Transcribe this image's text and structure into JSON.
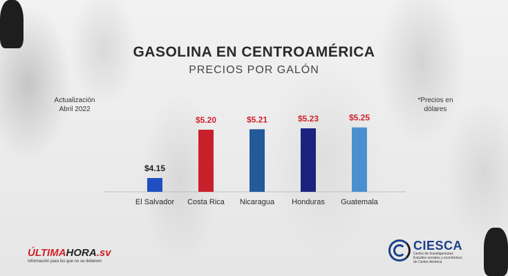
{
  "header": {
    "title": "GASOLINA EN CENTROAMÉRICA",
    "subtitle": "PRECIOS POR GALÓN"
  },
  "notes": {
    "update_line1": "Actualización",
    "update_line2": "Abril 2022",
    "currency_line1": "*Precios en",
    "currency_line2": "dólares"
  },
  "chart_data": {
    "type": "bar",
    "title": "GASOLINA EN CENTROAMÉRICA",
    "subtitle": "PRECIOS POR GALÓN",
    "categories": [
      "El Salvador",
      "Costa Rica",
      "Nicaragua",
      "Honduras",
      "Guatemala"
    ],
    "values": [
      4.15,
      5.2,
      5.21,
      5.23,
      5.25
    ],
    "labels": [
      "$4.15",
      "$5.20",
      "$5.21",
      "$5.23",
      "$5.25"
    ],
    "bar_colors": [
      "#1f4fc1",
      "#c8202a",
      "#235a9a",
      "#1a237e",
      "#4a90d0"
    ],
    "label_colors": [
      "#1e1e1e",
      "#d0222c",
      "#d0222c",
      "#d0222c",
      "#d0222c"
    ],
    "ylim": [
      3.85,
      5.35
    ],
    "xlabel": "",
    "ylabel": "",
    "grid": false,
    "unit": "USD per gallon"
  },
  "logos": {
    "left_brand_prefix": "ÚLTIMA",
    "left_brand_main": "HORA",
    "left_brand_suffix": ".sv",
    "left_tagline": "Información para los que no se detienen",
    "right_name": "CIESCA",
    "right_desc": "Centro de Investigaciones Estudios sociales y económicos de Centro América"
  }
}
